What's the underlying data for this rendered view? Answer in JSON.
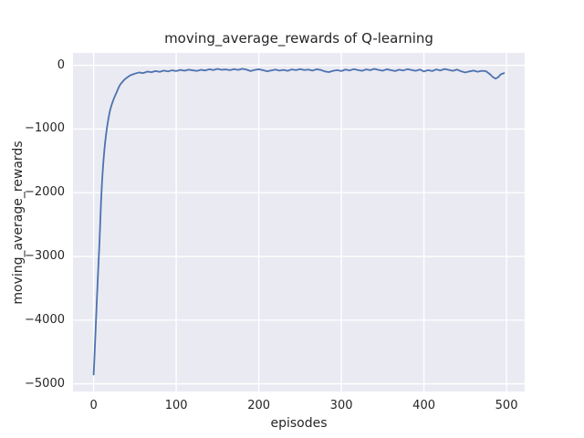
{
  "chart_data": {
    "type": "line",
    "title": "moving_average_rewards of Q-learning",
    "xlabel": "episodes",
    "ylabel": "moving_average_rewards",
    "xlim": [
      -25,
      522
    ],
    "ylim": [
      -5120,
      195
    ],
    "xticks": [
      0,
      100,
      200,
      300,
      400,
      500
    ],
    "yticks": [
      0,
      -1000,
      -2000,
      -3000,
      -4000,
      -5000
    ],
    "grid": true,
    "legend": "none",
    "colors": {
      "line": "#4c72b0",
      "plot_background": "#eaeaf2",
      "figure_background": "#ffffff",
      "gridline": "#ffffff",
      "text": "#262626"
    },
    "series": [
      {
        "name": "moving_average_rewards",
        "x": [
          0,
          1,
          2,
          3,
          4,
          5,
          6,
          7,
          8,
          9,
          10,
          11,
          12,
          13,
          14,
          15,
          16,
          17,
          18,
          19,
          20,
          22,
          24,
          26,
          28,
          30,
          32,
          34,
          36,
          38,
          40,
          42,
          44,
          46,
          48,
          50,
          55,
          60,
          65,
          70,
          75,
          80,
          85,
          90,
          95,
          100,
          105,
          110,
          115,
          120,
          125,
          130,
          135,
          140,
          145,
          150,
          155,
          160,
          165,
          170,
          175,
          180,
          185,
          190,
          195,
          200,
          205,
          210,
          215,
          220,
          225,
          230,
          235,
          240,
          245,
          250,
          255,
          260,
          265,
          270,
          275,
          280,
          285,
          290,
          295,
          300,
          305,
          310,
          315,
          320,
          325,
          330,
          335,
          340,
          345,
          350,
          355,
          360,
          365,
          370,
          375,
          380,
          385,
          390,
          395,
          400,
          405,
          410,
          415,
          420,
          425,
          430,
          435,
          440,
          445,
          450,
          455,
          460,
          465,
          470,
          475,
          480,
          484,
          487,
          490,
          493,
          497
        ],
        "y": [
          -4855,
          -4580,
          -4270,
          -3960,
          -3650,
          -3360,
          -3080,
          -2800,
          -2470,
          -2130,
          -1870,
          -1660,
          -1480,
          -1330,
          -1200,
          -1090,
          -990,
          -905,
          -830,
          -762,
          -700,
          -612,
          -538,
          -476,
          -420,
          -356,
          -305,
          -272,
          -242,
          -216,
          -196,
          -178,
          -160,
          -148,
          -140,
          -130,
          -112,
          -122,
          -98,
          -108,
          -90,
          -102,
          -82,
          -95,
          -78,
          -90,
          -72,
          -84,
          -68,
          -78,
          -88,
          -70,
          -80,
          -62,
          -74,
          -56,
          -70,
          -64,
          -76,
          -60,
          -72,
          -54,
          -66,
          -90,
          -72,
          -62,
          -76,
          -94,
          -80,
          -66,
          -82,
          -72,
          -86,
          -64,
          -76,
          -60,
          -74,
          -66,
          -82,
          -62,
          -72,
          -96,
          -106,
          -86,
          -76,
          -90,
          -66,
          -80,
          -60,
          -74,
          -86,
          -64,
          -76,
          -56,
          -72,
          -84,
          -62,
          -76,
          -90,
          -68,
          -80,
          -60,
          -74,
          -86,
          -66,
          -96,
          -76,
          -90,
          -64,
          -80,
          -58,
          -72,
          -86,
          -66,
          -94,
          -112,
          -96,
          -82,
          -100,
          -86,
          -92,
          -140,
          -190,
          -208,
          -185,
          -142,
          -122
        ]
      }
    ]
  }
}
